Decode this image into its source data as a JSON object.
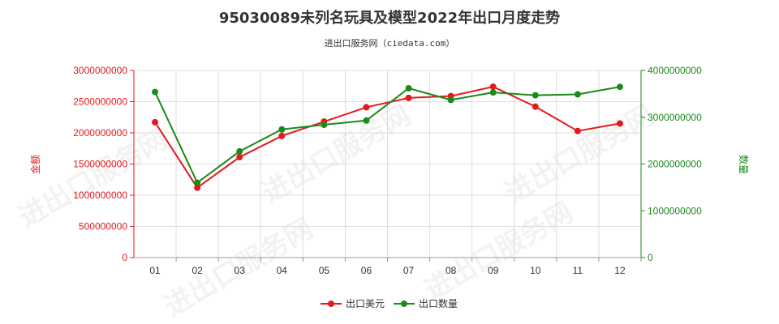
{
  "title": "95030089未列名玩具及模型2022年出口月度走势",
  "subtitle": "进出口服务网（ciedata.com）",
  "watermark": "进出口服务网",
  "colors": {
    "export_value": "#e31a1c",
    "export_quantity": "#1a8a1a",
    "axis": "#999999",
    "grid": "#dddddd"
  },
  "chart_data": {
    "type": "line",
    "title": "95030089未列名玩具及模型2022年出口月度走势",
    "x": [
      "01",
      "02",
      "03",
      "04",
      "05",
      "06",
      "07",
      "08",
      "09",
      "10",
      "11",
      "12"
    ],
    "left_axis_label": "金额",
    "right_axis_label": "数量",
    "left_ylim": [
      0,
      3000000000
    ],
    "right_ylim": [
      0,
      4000000000
    ],
    "left_ticks": [
      "0",
      "500000000",
      "1000000000",
      "1500000000",
      "2000000000",
      "2500000000",
      "3000000000"
    ],
    "right_ticks": [
      "0",
      "1000000000",
      "2000000000",
      "3000000000",
      "4000000000"
    ],
    "grid": true,
    "legend_position": "bottom-center",
    "series": [
      {
        "name": "出口美元",
        "axis": "left",
        "color": "#e31a1c",
        "values": [
          2170000000,
          1120000000,
          1610000000,
          1950000000,
          2180000000,
          2410000000,
          2560000000,
          2590000000,
          2740000000,
          2420000000,
          2030000000,
          2150000000
        ]
      },
      {
        "name": "出口数量",
        "axis": "right",
        "color": "#1a8a1a",
        "values": [
          3540000000,
          1600000000,
          2270000000,
          2740000000,
          2840000000,
          2930000000,
          3620000000,
          3370000000,
          3530000000,
          3470000000,
          3490000000,
          3650000000
        ]
      }
    ]
  }
}
